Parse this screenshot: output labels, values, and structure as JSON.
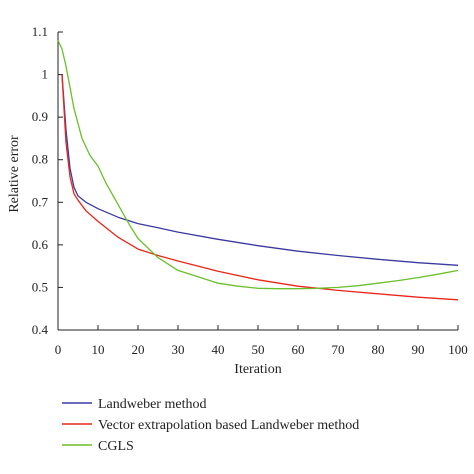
{
  "chart_data": {
    "type": "line",
    "title": "",
    "xlabel": "Iteration",
    "ylabel": "Relative error",
    "xlim": [
      0,
      100
    ],
    "ylim": [
      0.4,
      1.1
    ],
    "xticks": [
      "0",
      "10",
      "20",
      "30",
      "40",
      "50",
      "60",
      "70",
      "80",
      "90",
      "100"
    ],
    "yticks": [
      "0.4",
      "0.5",
      "0.6",
      "0.7",
      "0.8",
      "0.9",
      "1",
      "1.1"
    ],
    "grid": false,
    "legend_position": "bottom",
    "series": [
      {
        "name": "Landweber method",
        "color": "#3a3aa0",
        "x": [
          1,
          2,
          3,
          4,
          5,
          7,
          10,
          15,
          20,
          25,
          30,
          40,
          50,
          60,
          70,
          80,
          90,
          100
        ],
        "y": [
          1.0,
          0.87,
          0.78,
          0.735,
          0.715,
          0.7,
          0.685,
          0.665,
          0.65,
          0.64,
          0.63,
          0.613,
          0.598,
          0.585,
          0.575,
          0.566,
          0.558,
          0.552
        ]
      },
      {
        "name": "Vector extrapolation based Landweber method",
        "color": "#e8261a",
        "x": [
          1,
          2,
          3,
          4,
          5,
          7,
          10,
          15,
          20,
          25,
          30,
          40,
          50,
          60,
          70,
          80,
          90,
          100
        ],
        "y": [
          1.0,
          0.84,
          0.76,
          0.72,
          0.705,
          0.68,
          0.655,
          0.618,
          0.59,
          0.575,
          0.562,
          0.538,
          0.518,
          0.503,
          0.493,
          0.485,
          0.477,
          0.471
        ]
      },
      {
        "name": "CGLS",
        "color": "#6bbf2a",
        "x": [
          0,
          1,
          2,
          3,
          4,
          6,
          8,
          10,
          12,
          15,
          18,
          20,
          25,
          30,
          35,
          40,
          45,
          50,
          55,
          60,
          65,
          70,
          75,
          80,
          85,
          90,
          95,
          100
        ],
        "y": [
          1.08,
          1.06,
          1.02,
          0.97,
          0.92,
          0.85,
          0.81,
          0.785,
          0.745,
          0.695,
          0.645,
          0.615,
          0.57,
          0.54,
          0.525,
          0.51,
          0.503,
          0.498,
          0.497,
          0.497,
          0.498,
          0.5,
          0.504,
          0.51,
          0.516,
          0.523,
          0.531,
          0.54
        ]
      }
    ]
  }
}
